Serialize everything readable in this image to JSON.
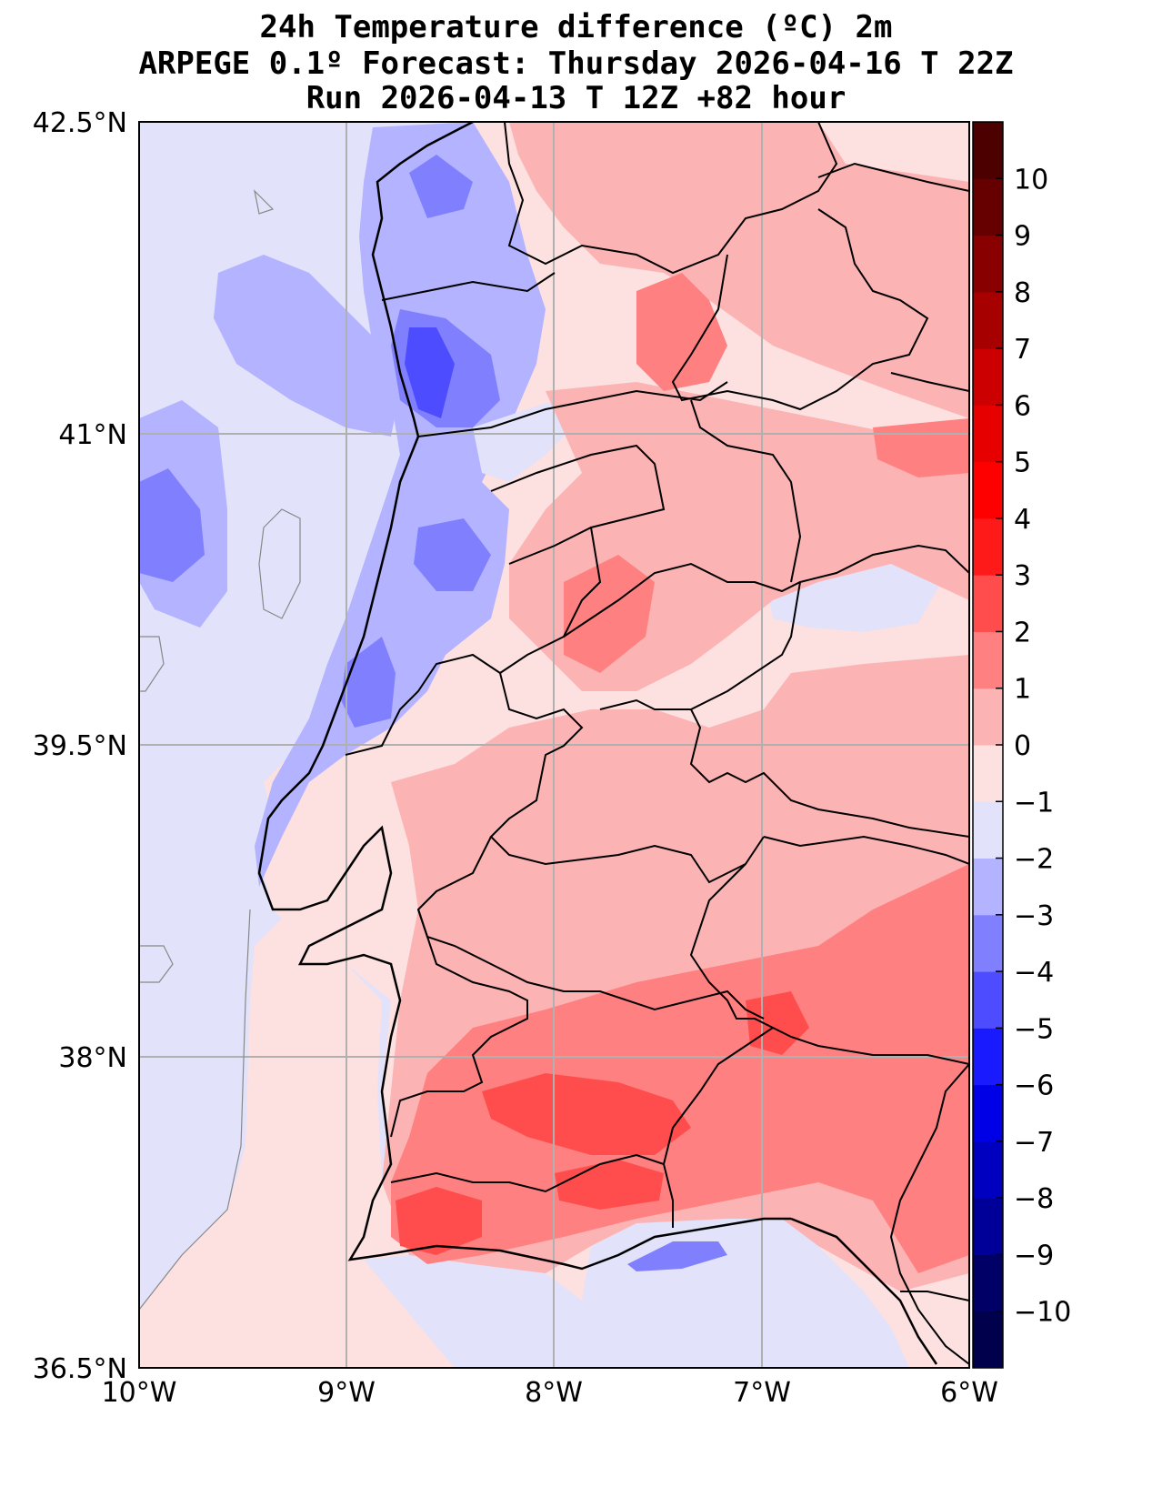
{
  "titles": {
    "line1": "24h Temperature difference (ºC) 2m",
    "line2": "ARPEGE 0.1º Forecast: Thursday 2026-04-16 T 22Z",
    "line3": "Run 2026-04-13 T 12Z +82 hour"
  },
  "map": {
    "lat_labels": [
      "42.5°N",
      "41°N",
      "39.5°N",
      "38°N",
      "36.5°N"
    ],
    "lon_labels": [
      "10°W",
      "9°W",
      "8°W",
      "7°W",
      "6°W"
    ],
    "lon_range": [
      -10,
      -6
    ],
    "lat_range": [
      36.5,
      42.5
    ],
    "ocean_color": "#e2e2fb",
    "land_color": "#fde0e0",
    "gridline_color": "#b0b0b0",
    "border_color": "#000000"
  },
  "colorbar": {
    "levels": [
      -11,
      -10,
      -9,
      -8,
      -7,
      -6,
      -5,
      -4,
      -3,
      -2,
      -1,
      0,
      1,
      2,
      3,
      4,
      5,
      6,
      7,
      8,
      9,
      10,
      11
    ],
    "tick_labels": [
      "10",
      "9",
      "8",
      "7",
      "6",
      "5",
      "4",
      "3",
      "2",
      "1",
      "0",
      "−1",
      "−2",
      "−3",
      "−4",
      "−5",
      "−6",
      "−7",
      "−8",
      "−9",
      "−10"
    ],
    "colors": [
      "#00004d",
      "#000066",
      "#000099",
      "#0000c0",
      "#0000e6",
      "#1a1aff",
      "#4d4dff",
      "#8080ff",
      "#b3b3ff",
      "#e2e2fb",
      "#fde0e0",
      "#fcb3b3",
      "#ff8080",
      "#ff4d4d",
      "#ff1a1a",
      "#ff0000",
      "#e60000",
      "#cc0000",
      "#a60000",
      "#880000",
      "#660000",
      "#4d0000"
    ]
  }
}
